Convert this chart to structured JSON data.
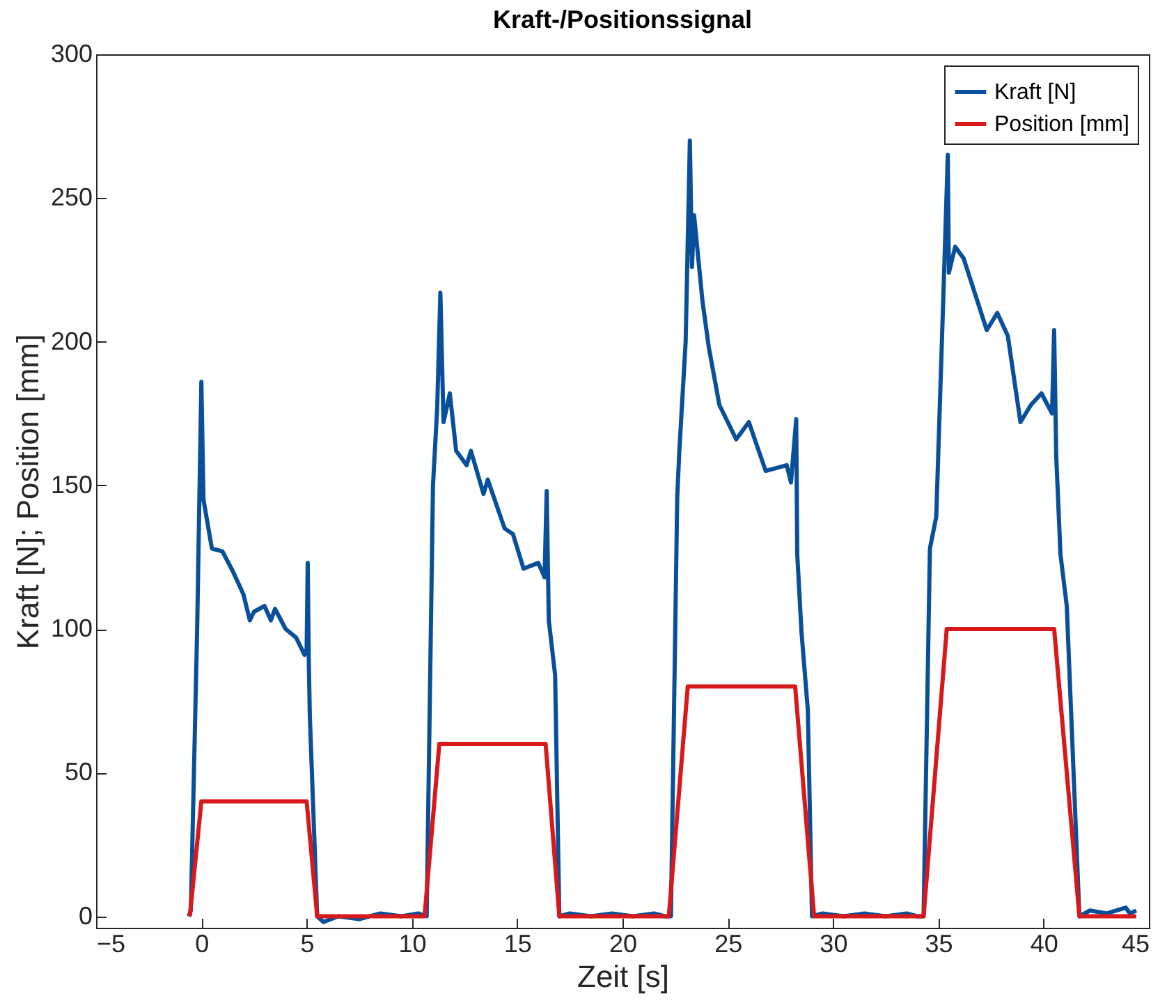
{
  "chart_data": {
    "type": "line",
    "title": "Kraft-/Positionssignal",
    "xlabel": "Zeit [s]",
    "ylabel": "Kraft [N]; Position [mm]",
    "xlim": [
      -5,
      45
    ],
    "ylim": [
      -4,
      300
    ],
    "xticks": [
      -5,
      0,
      5,
      10,
      15,
      20,
      25,
      30,
      35,
      40,
      45
    ],
    "yticks": [
      0,
      50,
      100,
      150,
      200,
      250,
      300
    ],
    "legend": "top right",
    "grid": false,
    "line_style": "solid",
    "marker": "none",
    "series": [
      {
        "name": "Kraft [N]",
        "color": "#0a4f9a",
        "x": [
          -0.6,
          -0.5,
          -0.2,
          0.0,
          0.1,
          0.5,
          1.0,
          1.5,
          2.0,
          2.3,
          2.5,
          3.0,
          3.3,
          3.5,
          4.0,
          4.5,
          4.9,
          5.0,
          5.05,
          5.1,
          5.15,
          5.5,
          5.8,
          6.5,
          7.5,
          8.5,
          9.5,
          10.3,
          10.7,
          11.0,
          11.2,
          11.35,
          11.5,
          11.8,
          12.1,
          12.6,
          12.8,
          13.4,
          13.6,
          14.4,
          14.8,
          15.3,
          16.0,
          16.3,
          16.4,
          16.5,
          16.8,
          17.0,
          17.5,
          18.5,
          19.5,
          20.5,
          21.5,
          22.0,
          22.3,
          22.6,
          22.7,
          23.0,
          23.2,
          23.3,
          23.4,
          23.8,
          24.1,
          24.6,
          25.4,
          26.0,
          26.8,
          27.8,
          28.0,
          28.25,
          28.3,
          28.5,
          28.8,
          29.0,
          29.5,
          30.5,
          31.5,
          32.5,
          33.5,
          34.0,
          34.3,
          34.6,
          34.9,
          35.2,
          35.45,
          35.5,
          35.8,
          36.2,
          37.3,
          37.8,
          38.3,
          38.9,
          39.4,
          39.9,
          40.4,
          40.5,
          40.6,
          40.8,
          41.1,
          41.7,
          42.2,
          43.0,
          43.9,
          44.1,
          44.4
        ],
        "values": [
          0,
          2,
          100,
          186,
          145,
          128,
          127,
          120,
          112,
          103,
          106,
          108,
          103,
          107,
          100,
          97,
          91,
          93,
          123,
          90,
          70,
          0,
          -2,
          0,
          -1,
          1,
          0,
          1,
          0,
          150,
          177,
          217,
          172,
          182,
          162,
          157,
          162,
          147,
          152,
          135,
          133,
          121,
          123,
          118,
          148,
          103,
          84,
          0,
          1,
          0,
          1,
          0,
          1,
          0,
          0,
          146,
          162,
          200,
          270,
          226,
          244,
          214,
          198,
          178,
          166,
          172,
          155,
          157,
          151,
          173,
          126,
          99,
          72,
          0,
          1,
          0,
          1,
          0,
          1,
          0,
          0,
          128,
          139,
          207,
          265,
          224,
          233,
          229,
          204,
          210,
          202,
          172,
          178,
          182,
          175,
          204,
          160,
          126,
          108,
          0,
          2,
          1,
          3,
          1,
          2
        ]
      },
      {
        "name": "Position [mm]",
        "color": "#d7191c",
        "x": [
          -0.55,
          0.0,
          5.0,
          5.5,
          10.6,
          11.3,
          16.35,
          17.0,
          22.2,
          23.1,
          28.2,
          29.1,
          34.3,
          35.4,
          40.5,
          41.7,
          44.4
        ],
        "values": [
          0,
          40,
          40,
          0,
          0,
          60,
          60,
          0,
          0,
          80,
          80,
          0,
          0,
          100,
          100,
          0,
          0
        ]
      }
    ]
  }
}
